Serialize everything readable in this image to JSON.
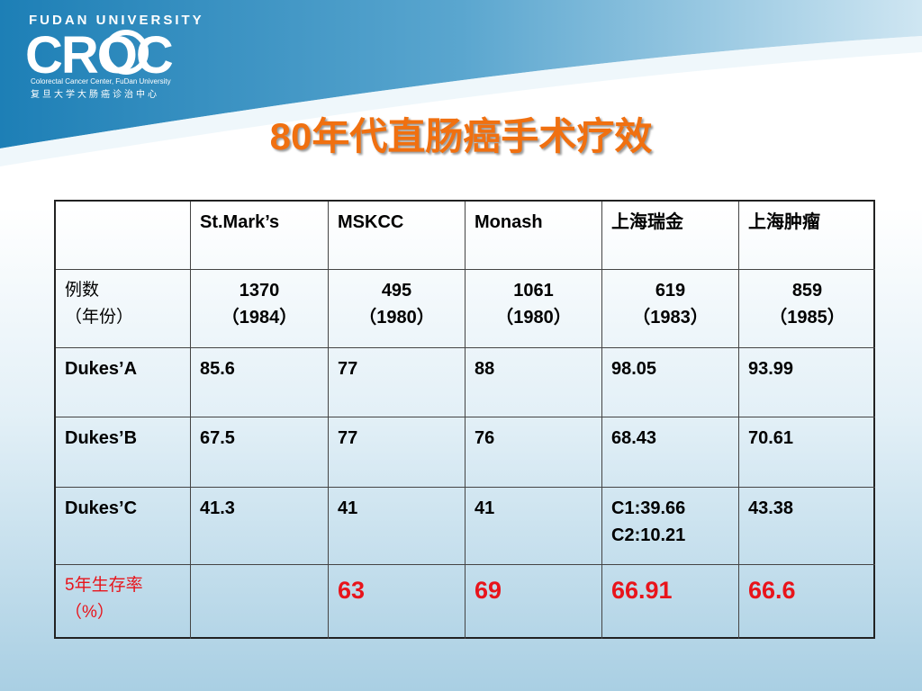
{
  "header": {
    "university": "FUDAN UNIVERSITY",
    "logo": "CROC",
    "center_en": "Colorectal Cancer Center, FuDan University",
    "center_cn": "复旦大学大肠癌诊治中心"
  },
  "title": "80年代直肠癌手术疗效",
  "table": {
    "rows": [
      [
        null,
        "St.Mark’s",
        "MSKCC",
        "Monash",
        "上海瑞金",
        "上海肿瘤"
      ],
      [
        [
          "例数",
          "（年份）"
        ],
        [
          "1370",
          "（1984）"
        ],
        [
          "495",
          "（1980）"
        ],
        [
          "1061",
          "（1980）"
        ],
        [
          "619",
          "（1983）"
        ],
        [
          "859",
          "（1985）"
        ]
      ],
      [
        "Dukes’A",
        "85.6",
        "77",
        "88",
        "98.05",
        "93.99"
      ],
      [
        "Dukes’B",
        "67.5",
        "77",
        "76",
        "68.43",
        "70.61"
      ],
      [
        "Dukes’C",
        "41.3",
        "41",
        "41",
        [
          "C1:39.66",
          "C2:10.21"
        ],
        "43.38"
      ],
      [
        [
          "5年生存率",
          "（%）"
        ],
        null,
        "63",
        "69",
        "66.91",
        "66.6"
      ]
    ]
  }
}
